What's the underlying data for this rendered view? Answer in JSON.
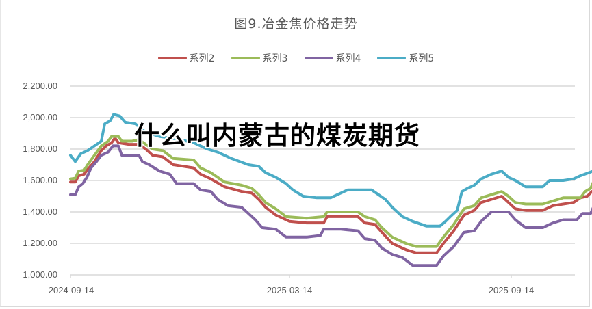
{
  "chart_data": {
    "type": "line",
    "title": "图9.冶金焦价格走势",
    "xlabel": "",
    "ylabel": "",
    "ylim": [
      1000,
      2200
    ],
    "yticks": [
      "2,200.00",
      "2,000.00",
      "1,800.00",
      "1,600.00",
      "1,400.00",
      "1,200.00",
      "1,000.00"
    ],
    "ytick_values": [
      2200,
      2000,
      1800,
      1600,
      1400,
      1200,
      1000
    ],
    "xticks": [
      "2024-09-14",
      "2025-03-14",
      "2025-09-14"
    ],
    "grid": "horizontal",
    "legend_position": "top",
    "x_range": [
      "2024-09-14",
      "2025-11-10"
    ],
    "series": [
      {
        "name": "系列2",
        "color": "#c0504d",
        "points": [
          [
            0,
            1590
          ],
          [
            7,
            1590
          ],
          [
            12,
            1630
          ],
          [
            20,
            1640
          ],
          [
            25,
            1670
          ],
          [
            35,
            1720
          ],
          [
            45,
            1790
          ],
          [
            52,
            1820
          ],
          [
            60,
            1840
          ],
          [
            65,
            1870
          ],
          [
            70,
            1840
          ],
          [
            85,
            1830
          ],
          [
            100,
            1830
          ],
          [
            110,
            1800
          ],
          [
            120,
            1760
          ],
          [
            135,
            1750
          ],
          [
            150,
            1700
          ],
          [
            180,
            1680
          ],
          [
            190,
            1640
          ],
          [
            205,
            1610
          ],
          [
            225,
            1560
          ],
          [
            250,
            1530
          ],
          [
            265,
            1520
          ],
          [
            275,
            1480
          ],
          [
            285,
            1430
          ],
          [
            300,
            1380
          ],
          [
            320,
            1340
          ],
          [
            345,
            1330
          ],
          [
            370,
            1330
          ],
          [
            375,
            1370
          ],
          [
            395,
            1370
          ],
          [
            420,
            1370
          ],
          [
            430,
            1330
          ],
          [
            445,
            1320
          ],
          [
            455,
            1270
          ],
          [
            470,
            1200
          ],
          [
            490,
            1160
          ],
          [
            505,
            1140
          ],
          [
            535,
            1140
          ],
          [
            545,
            1200
          ],
          [
            560,
            1280
          ],
          [
            575,
            1380
          ],
          [
            590,
            1410
          ],
          [
            600,
            1460
          ],
          [
            615,
            1480
          ],
          [
            630,
            1500
          ],
          [
            640,
            1460
          ],
          [
            650,
            1420
          ],
          [
            665,
            1410
          ],
          [
            690,
            1410
          ],
          [
            705,
            1440
          ],
          [
            720,
            1450
          ],
          [
            735,
            1460
          ],
          [
            745,
            1490
          ],
          [
            755,
            1500
          ],
          [
            762,
            1530
          ]
        ]
      },
      {
        "name": "系列3",
        "color": "#9bbb59",
        "points": [
          [
            0,
            1610
          ],
          [
            7,
            1615
          ],
          [
            12,
            1660
          ],
          [
            20,
            1665
          ],
          [
            25,
            1700
          ],
          [
            35,
            1760
          ],
          [
            45,
            1820
          ],
          [
            55,
            1850
          ],
          [
            60,
            1880
          ],
          [
            70,
            1880
          ],
          [
            75,
            1850
          ],
          [
            90,
            1850
          ],
          [
            100,
            1860
          ],
          [
            110,
            1830
          ],
          [
            120,
            1800
          ],
          [
            135,
            1790
          ],
          [
            150,
            1740
          ],
          [
            180,
            1730
          ],
          [
            190,
            1680
          ],
          [
            205,
            1650
          ],
          [
            225,
            1590
          ],
          [
            250,
            1570
          ],
          [
            265,
            1550
          ],
          [
            275,
            1510
          ],
          [
            285,
            1460
          ],
          [
            300,
            1420
          ],
          [
            315,
            1370
          ],
          [
            345,
            1360
          ],
          [
            370,
            1370
          ],
          [
            375,
            1400
          ],
          [
            420,
            1400
          ],
          [
            430,
            1370
          ],
          [
            445,
            1350
          ],
          [
            455,
            1300
          ],
          [
            470,
            1240
          ],
          [
            490,
            1200
          ],
          [
            505,
            1180
          ],
          [
            535,
            1180
          ],
          [
            545,
            1240
          ],
          [
            560,
            1320
          ],
          [
            575,
            1420
          ],
          [
            590,
            1440
          ],
          [
            600,
            1490
          ],
          [
            615,
            1510
          ],
          [
            630,
            1530
          ],
          [
            640,
            1500
          ],
          [
            650,
            1460
          ],
          [
            665,
            1450
          ],
          [
            690,
            1450
          ],
          [
            705,
            1470
          ],
          [
            720,
            1490
          ],
          [
            745,
            1490
          ],
          [
            752,
            1530
          ],
          [
            760,
            1550
          ],
          [
            764,
            1590
          ]
        ]
      },
      {
        "name": "系列4",
        "color": "#8064a2",
        "points": [
          [
            0,
            1510
          ],
          [
            7,
            1510
          ],
          [
            12,
            1560
          ],
          [
            18,
            1580
          ],
          [
            24,
            1620
          ],
          [
            30,
            1680
          ],
          [
            38,
            1720
          ],
          [
            45,
            1760
          ],
          [
            55,
            1780
          ],
          [
            62,
            1820
          ],
          [
            70,
            1820
          ],
          [
            75,
            1760
          ],
          [
            100,
            1760
          ],
          [
            105,
            1720
          ],
          [
            115,
            1700
          ],
          [
            130,
            1660
          ],
          [
            145,
            1640
          ],
          [
            155,
            1580
          ],
          [
            180,
            1580
          ],
          [
            190,
            1540
          ],
          [
            205,
            1530
          ],
          [
            215,
            1480
          ],
          [
            230,
            1440
          ],
          [
            250,
            1430
          ],
          [
            260,
            1390
          ],
          [
            270,
            1350
          ],
          [
            280,
            1300
          ],
          [
            300,
            1290
          ],
          [
            315,
            1240
          ],
          [
            345,
            1240
          ],
          [
            365,
            1250
          ],
          [
            370,
            1290
          ],
          [
            395,
            1290
          ],
          [
            420,
            1280
          ],
          [
            430,
            1230
          ],
          [
            445,
            1220
          ],
          [
            455,
            1170
          ],
          [
            470,
            1130
          ],
          [
            485,
            1110
          ],
          [
            500,
            1060
          ],
          [
            535,
            1060
          ],
          [
            545,
            1120
          ],
          [
            560,
            1180
          ],
          [
            575,
            1270
          ],
          [
            590,
            1280
          ],
          [
            600,
            1340
          ],
          [
            615,
            1400
          ],
          [
            640,
            1400
          ],
          [
            650,
            1350
          ],
          [
            665,
            1300
          ],
          [
            690,
            1300
          ],
          [
            705,
            1330
          ],
          [
            720,
            1350
          ],
          [
            740,
            1350
          ],
          [
            748,
            1390
          ],
          [
            760,
            1390
          ],
          [
            764,
            1430
          ]
        ]
      },
      {
        "name": "系列5",
        "color": "#4bacc6",
        "points": [
          [
            0,
            1760
          ],
          [
            7,
            1720
          ],
          [
            15,
            1770
          ],
          [
            25,
            1790
          ],
          [
            35,
            1820
          ],
          [
            45,
            1850
          ],
          [
            50,
            1960
          ],
          [
            58,
            1980
          ],
          [
            63,
            2020
          ],
          [
            72,
            2010
          ],
          [
            80,
            1970
          ],
          [
            95,
            1960
          ],
          [
            105,
            1920
          ],
          [
            115,
            1900
          ],
          [
            130,
            1880
          ],
          [
            160,
            1860
          ],
          [
            180,
            1840
          ],
          [
            200,
            1800
          ],
          [
            215,
            1780
          ],
          [
            235,
            1740
          ],
          [
            260,
            1700
          ],
          [
            275,
            1690
          ],
          [
            285,
            1650
          ],
          [
            300,
            1620
          ],
          [
            315,
            1580
          ],
          [
            325,
            1540
          ],
          [
            340,
            1500
          ],
          [
            360,
            1490
          ],
          [
            380,
            1490
          ],
          [
            390,
            1510
          ],
          [
            405,
            1540
          ],
          [
            425,
            1540
          ],
          [
            440,
            1540
          ],
          [
            450,
            1510
          ],
          [
            460,
            1480
          ],
          [
            470,
            1430
          ],
          [
            485,
            1370
          ],
          [
            500,
            1340
          ],
          [
            520,
            1310
          ],
          [
            540,
            1310
          ],
          [
            548,
            1340
          ],
          [
            555,
            1370
          ],
          [
            565,
            1410
          ],
          [
            572,
            1530
          ],
          [
            580,
            1550
          ],
          [
            590,
            1570
          ],
          [
            600,
            1610
          ],
          [
            615,
            1640
          ],
          [
            630,
            1660
          ],
          [
            640,
            1620
          ],
          [
            650,
            1600
          ],
          [
            665,
            1560
          ],
          [
            690,
            1560
          ],
          [
            700,
            1600
          ],
          [
            720,
            1600
          ],
          [
            735,
            1610
          ],
          [
            745,
            1630
          ],
          [
            764,
            1660
          ]
        ]
      }
    ]
  },
  "title": "图9.冶金焦价格走势",
  "legend": [
    {
      "label": "系列2",
      "color": "#c0504d"
    },
    {
      "label": "系列3",
      "color": "#9bbb59"
    },
    {
      "label": "系列4",
      "color": "#8064a2"
    },
    {
      "label": "系列5",
      "color": "#4bacc6"
    }
  ],
  "overlay_text": "什么叫内蒙古的煤炭期货"
}
